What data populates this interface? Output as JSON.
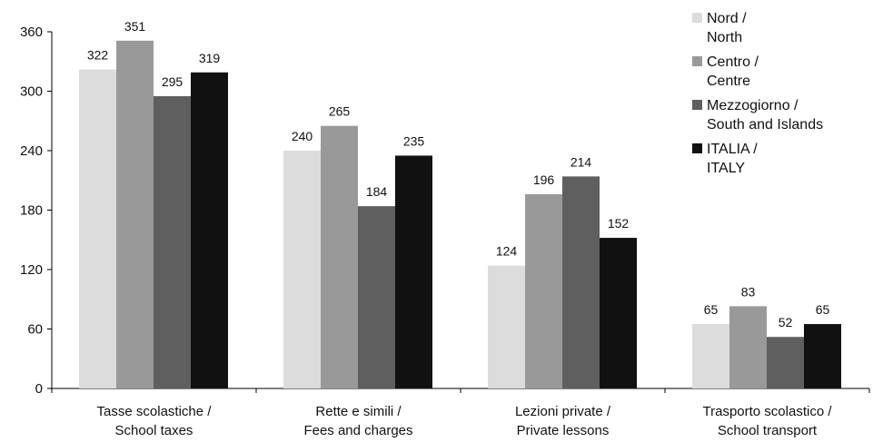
{
  "chart_data": {
    "type": "bar",
    "title": "",
    "xlabel": "",
    "ylabel": "",
    "ylim": [
      0,
      360
    ],
    "yticks": [
      0,
      60,
      120,
      180,
      240,
      300,
      360
    ],
    "grid": false,
    "legend_position": "top-right",
    "categories": [
      [
        "Tasse scolastiche /",
        "School taxes"
      ],
      [
        "Rette e simili /",
        "Fees and charges"
      ],
      [
        "Lezioni private /",
        "Private lessons"
      ],
      [
        "Trasporto scolastico /",
        "School transport"
      ]
    ],
    "series": [
      {
        "name": [
          "Nord /",
          "North"
        ],
        "color": "#dcdcdc",
        "values": [
          322,
          240,
          124,
          65
        ]
      },
      {
        "name": [
          "Centro /",
          "Centre"
        ],
        "color": "#999999",
        "values": [
          351,
          265,
          196,
          83
        ]
      },
      {
        "name": [
          "Mezzogiorno /",
          "South and Islands"
        ],
        "color": "#5f5f5f",
        "values": [
          295,
          184,
          214,
          52
        ]
      },
      {
        "name": [
          "ITALIA /",
          "ITALY"
        ],
        "color": "#111111",
        "values": [
          319,
          235,
          152,
          65
        ]
      }
    ]
  }
}
